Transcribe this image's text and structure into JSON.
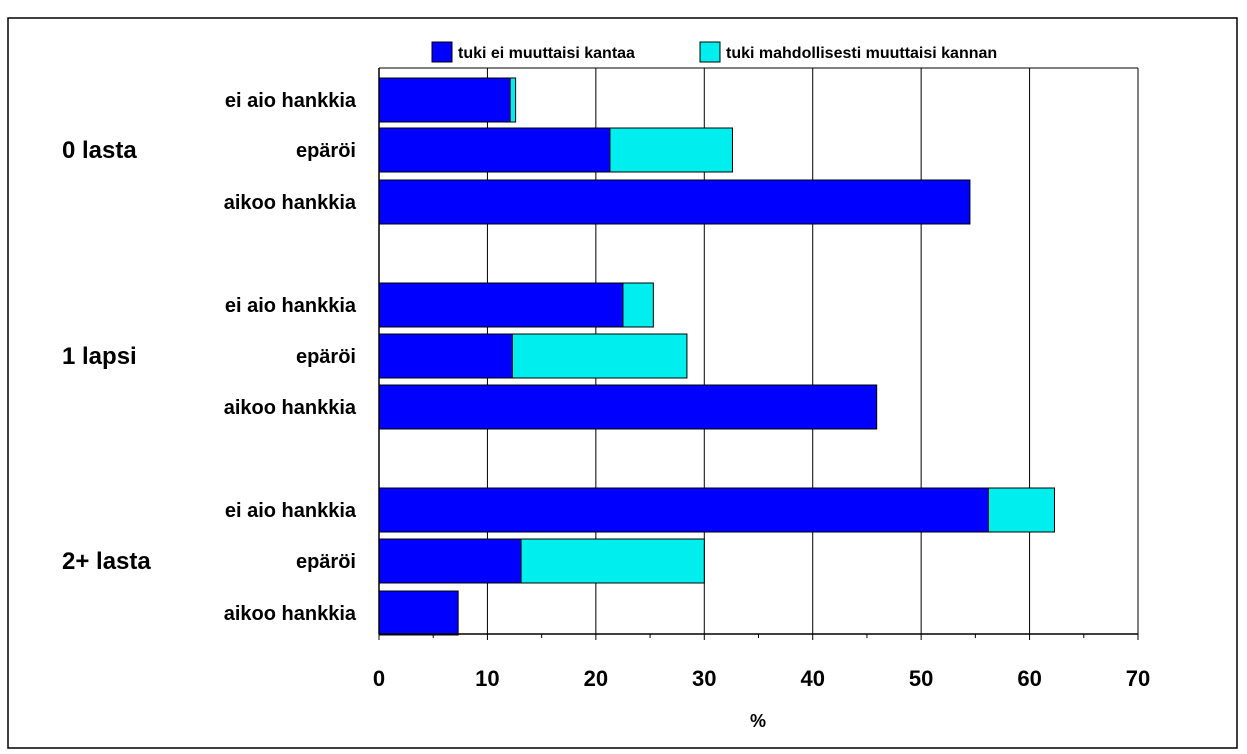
{
  "title_fragment": "",
  "chart_data": {
    "type": "bar",
    "orientation": "horizontal",
    "stacked": true,
    "title": "",
    "xlabel": "%",
    "ylabel": "",
    "xlim": [
      0,
      70
    ],
    "xticks": [
      0,
      10,
      20,
      30,
      40,
      50,
      60,
      70
    ],
    "grid": "vertical",
    "legend": "top",
    "colors": {
      "tuki ei muuttaisi kantaa": "#0000ff",
      "tuki mahdollisesti muuttaisi kannan": "#00eeee"
    },
    "groups": [
      {
        "label": "0 lasta",
        "rows": [
          {
            "label": "ei aio hankkia",
            "values": [
              12.1,
              0.5
            ]
          },
          {
            "label": "epäröi",
            "values": [
              21.3,
              11.3
            ]
          },
          {
            "label": "aikoo hankkia",
            "values": [
              54.5,
              0.0
            ]
          }
        ]
      },
      {
        "label": "1 lapsi",
        "rows": [
          {
            "label": "ei aio hankkia",
            "values": [
              22.5,
              2.8
            ]
          },
          {
            "label": "epäröi",
            "values": [
              12.3,
              16.1
            ]
          },
          {
            "label": "aikoo hankkia",
            "values": [
              45.9,
              0.0
            ]
          }
        ]
      },
      {
        "label": "2+ lasta",
        "rows": [
          {
            "label": "ei aio hankkia",
            "values": [
              56.2,
              6.1
            ]
          },
          {
            "label": "epäröi",
            "values": [
              13.1,
              16.9
            ]
          },
          {
            "label": "aikoo hankkia",
            "values": [
              7.3,
              0.0
            ]
          }
        ]
      }
    ],
    "series": [
      {
        "name": "tuki ei muuttaisi kantaa"
      },
      {
        "name": "tuki mahdollisesti muuttaisi kannan"
      }
    ]
  }
}
